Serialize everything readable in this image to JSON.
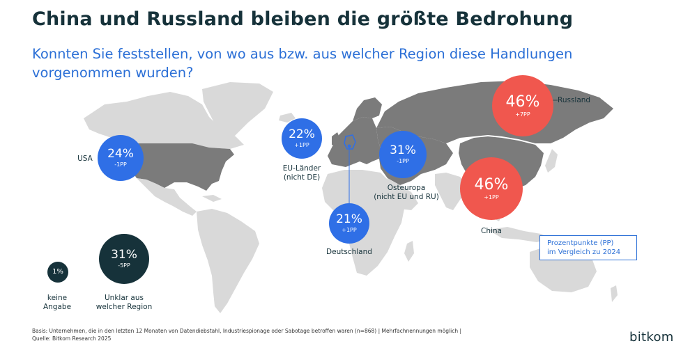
{
  "title": "China und Russland bleiben die größte Bedrohung",
  "subtitle": "Konnten Sie feststellen, von wo aus bzw. aus welcher Region diese Handlungen vorgenommen wurden?",
  "colors": {
    "highlight_land": "#7b7b7b",
    "base_land": "#d9d9d9",
    "blue": "#2f6fe6",
    "red": "#f0574e",
    "dark": "#16323a"
  },
  "regions": [
    {
      "key": "usa",
      "label": "USA",
      "value": "24%",
      "change": "-1PP"
    },
    {
      "key": "eu",
      "label_lines": [
        "EU-Länder",
        "(nicht DE)"
      ],
      "value": "22%",
      "change": "+1PP"
    },
    {
      "key": "osteuropa",
      "label_lines": [
        "Osteuropa",
        "(nicht EU und RU)"
      ],
      "value": "31%",
      "change": "-1PP"
    },
    {
      "key": "deutschland",
      "label": "Deutschland",
      "value": "21%",
      "change": "+1PP"
    },
    {
      "key": "russland",
      "label": "Russland",
      "value": "46%",
      "change": "+7PP"
    },
    {
      "key": "china",
      "label": "China",
      "value": "46%",
      "change": "+1PP"
    }
  ],
  "other": [
    {
      "key": "keine",
      "label_lines": [
        "keine",
        "Angabe"
      ],
      "value": "1%"
    },
    {
      "key": "unklar",
      "label_lines": [
        "Unklar aus",
        "welcher Region"
      ],
      "value": "31%",
      "change": "-5PP"
    }
  ],
  "pp_note": [
    "Prozentpunkte (PP)",
    "im Vergleich zu 2024"
  ],
  "footer": {
    "basis": "Basis: Unternehmen, die in den letzten 12 Monaten von Datendiebstahl, Industriespionage oder Sabotage betroffen waren (n=868) | Mehrfachnennungen möglich |",
    "source": "Quelle: Bitkom Research 2025"
  },
  "logo": "bitkom"
}
